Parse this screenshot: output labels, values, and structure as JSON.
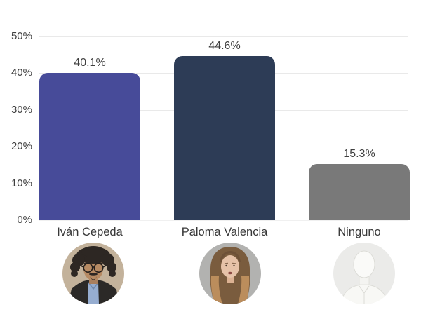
{
  "chart_data": {
    "type": "bar",
    "title": "",
    "xlabel": "",
    "ylabel": "",
    "categories": [
      "Iván Cepeda",
      "Paloma Valencia",
      "Ninguno"
    ],
    "values": [
      40.1,
      44.6,
      15.3
    ],
    "value_labels": [
      "40.1%",
      "44.6%",
      "15.3%"
    ],
    "colors": [
      "#474b99",
      "#2d3c56",
      "#797979"
    ],
    "ylim": [
      0,
      50
    ],
    "ytick_labels": [
      "50%",
      "40%",
      "30%",
      "20%",
      "10%",
      "0%"
    ],
    "grid": true,
    "legend": false,
    "avatar_icons": [
      "avatar-ivan-cepeda",
      "avatar-paloma-valencia",
      "avatar-ninguno"
    ]
  },
  "theme": {
    "background": "#ffffff",
    "gridline_color": "#e9e9e9",
    "text_color": "#3e3e3e"
  }
}
